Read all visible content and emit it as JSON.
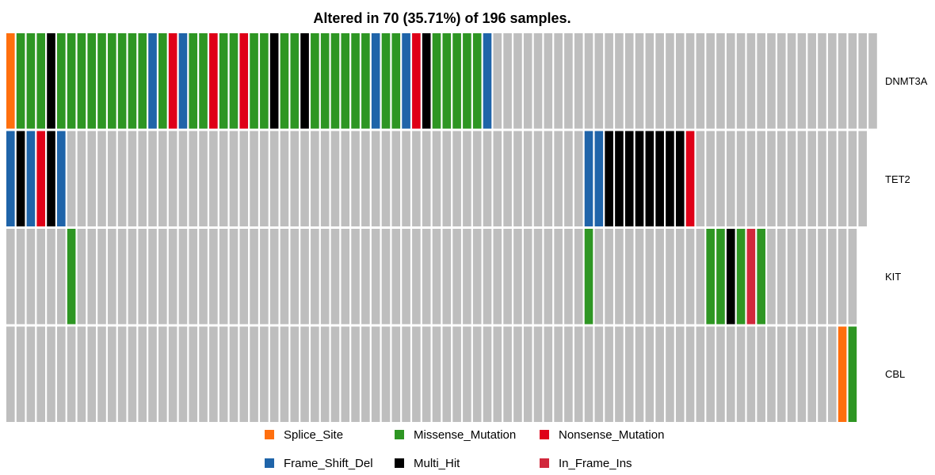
{
  "chart_data": {
    "type": "heatmap",
    "title": "Altered in 70 (35.71%) of 196 samples.",
    "genes": [
      "DNMT3A",
      "TET2",
      "KIT",
      "CBL"
    ],
    "codes": {
      "S": "Splice_Site",
      "M": "Missense_Mutation",
      "N": "Nonsense_Mutation",
      "F": "Frame_Shift_Del",
      "H": "Multi_Hit",
      "I": "In_Frame_Ins",
      ".": "none"
    },
    "matrix": [
      "SMMMHMMMMMMMMMFMNFMMNMMNMMHMMHMMMMMMFMMFNHMMMMMF......................................",
      "FHFNHF...................................................FFHHHHHHHHN.................",
      "......M..................................................M...........MMHMIM.........",
      "..................................................................................SM"
    ],
    "legend": [
      {
        "code": "S",
        "label": "Splice_Site",
        "color": "#FF6F0E"
      },
      {
        "code": "M",
        "label": "Missense_Mutation",
        "color": "#2E9623"
      },
      {
        "code": "N",
        "label": "Nonsense_Mutation",
        "color": "#DF0018"
      },
      {
        "code": "F",
        "label": "Frame_Shift_Del",
        "color": "#1F64A9"
      },
      {
        "code": "H",
        "label": "Multi_Hit",
        "color": "#000000"
      },
      {
        "code": "I",
        "label": "In_Frame_Ins",
        "color": "#D1283C"
      }
    ],
    "empty_color": "#BEBEBE"
  }
}
